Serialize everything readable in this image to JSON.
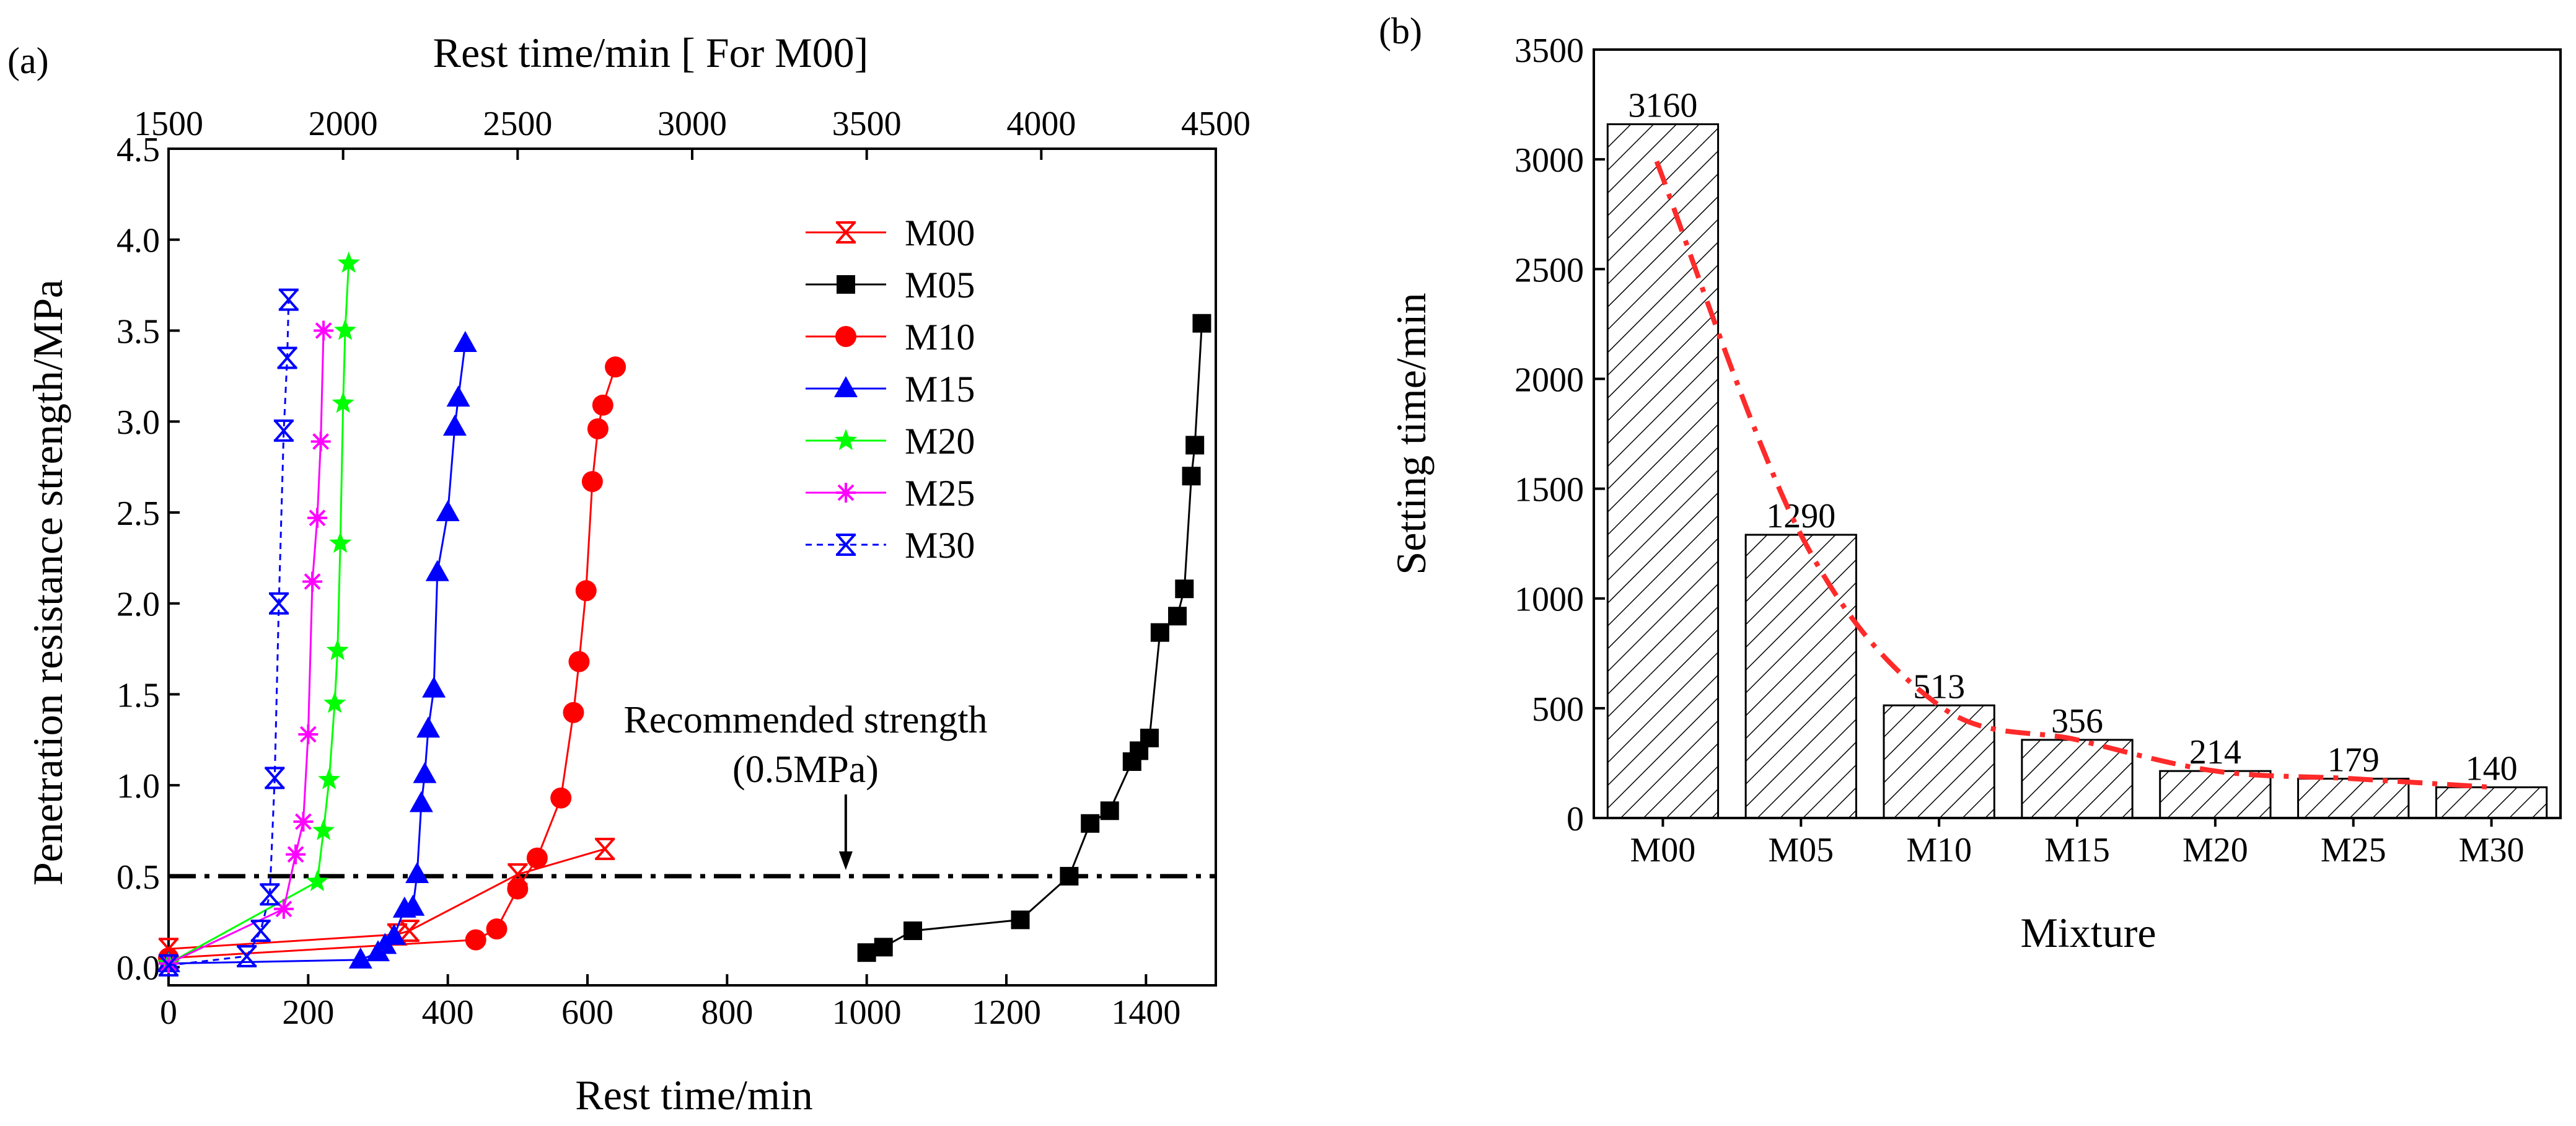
{
  "figure_labels": {
    "a": "(a)",
    "b": "(b)"
  },
  "chart_data": [
    {
      "type": "line",
      "panel": "(a)",
      "title": "",
      "xlabel": "Rest time/min",
      "xlabel_top": "Rest time/min [ For M00]",
      "ylabel": "Penetration resistance strength/MPa",
      "xlim": [
        0,
        1500
      ],
      "xlim_top": [
        1500,
        4500
      ],
      "ylim": [
        -0.1,
        4.5
      ],
      "xticks": [
        0,
        200,
        400,
        600,
        800,
        1000,
        1200,
        1400
      ],
      "xticks_top": [
        1500,
        2000,
        2500,
        3000,
        3500,
        4000,
        4500
      ],
      "yticks": [
        "0.0",
        "0.5",
        "1.0",
        "1.5",
        "2.0",
        "2.5",
        "3.0",
        "3.5",
        "4.0",
        "4.5"
      ],
      "legend_position": "top-center",
      "series": [
        {
          "name": "M00",
          "color": "#ff0000",
          "marker": "x-star",
          "dash": "solid",
          "axis": "top",
          "x": [
            1500,
            2155,
            2190,
            2500,
            2750
          ],
          "y": [
            0.1,
            0.18,
            0.2,
            0.51,
            0.65
          ]
        },
        {
          "name": "M05",
          "color": "#000000",
          "marker": "square",
          "dash": "solid",
          "axis": "bottom",
          "x": [
            1000,
            1024,
            1066,
            1220,
            1290,
            1320,
            1348,
            1380,
            1390,
            1405,
            1420,
            1445,
            1455,
            1465,
            1470,
            1480
          ],
          "y": [
            0.08,
            0.11,
            0.2,
            0.26,
            0.5,
            0.79,
            0.86,
            1.13,
            1.19,
            1.26,
            1.84,
            1.93,
            2.08,
            2.7,
            2.87,
            3.54
          ]
        },
        {
          "name": "M10",
          "color": "#ff0000",
          "marker": "circle",
          "dash": "solid",
          "axis": "bottom",
          "x": [
            0,
            440,
            470,
            500,
            528,
            562,
            580,
            588,
            598,
            607,
            615,
            622,
            640
          ],
          "y": [
            0.05,
            0.15,
            0.21,
            0.43,
            0.6,
            0.93,
            1.4,
            1.68,
            2.07,
            2.67,
            2.96,
            3.09,
            3.3
          ]
        },
        {
          "name": "M15",
          "color": "#0000ff",
          "marker": "triangle",
          "dash": "solid",
          "axis": "bottom",
          "x": [
            0,
            275,
            300,
            310,
            323,
            338,
            350,
            356,
            362,
            367,
            372,
            380,
            385,
            400,
            410,
            415,
            425
          ],
          "y": [
            0.02,
            0.04,
            0.08,
            0.12,
            0.17,
            0.32,
            0.33,
            0.51,
            0.9,
            1.06,
            1.31,
            1.53,
            2.17,
            2.5,
            2.97,
            3.13,
            3.43
          ]
        },
        {
          "name": "M20",
          "color": "#00ff00",
          "marker": "star",
          "dash": "solid",
          "axis": "bottom",
          "x": [
            0,
            213,
            222,
            230,
            238,
            242,
            246,
            250,
            253,
            258
          ],
          "y": [
            0.02,
            0.47,
            0.75,
            1.03,
            1.45,
            1.74,
            2.33,
            3.1,
            3.5,
            3.87
          ]
        },
        {
          "name": "M25",
          "color": "#ff00ff",
          "marker": "asterisk",
          "dash": "solid",
          "axis": "bottom",
          "x": [
            0,
            165,
            182,
            193,
            200,
            206,
            213,
            218,
            222
          ],
          "y": [
            0.02,
            0.32,
            0.62,
            0.8,
            1.28,
            2.12,
            2.47,
            2.89,
            3.5
          ]
        },
        {
          "name": "M30",
          "color": "#0000ff",
          "marker": "x-star",
          "dash": "dashed",
          "axis": "bottom",
          "x": [
            0,
            112,
            132,
            145,
            152,
            158,
            165,
            170,
            172
          ],
          "y": [
            0.01,
            0.06,
            0.2,
            0.4,
            1.04,
            2.0,
            2.95,
            3.35,
            3.67
          ]
        }
      ],
      "reference_line": {
        "y": 0.5,
        "style": "dash-dot"
      },
      "annotation": {
        "line1": "Recommended strength",
        "line2": "(0.5MPa)",
        "arrow_x": 970,
        "arrow_y": 0.5
      }
    },
    {
      "type": "bar",
      "panel": "(b)",
      "title": "",
      "xlabel": "Mixture",
      "ylabel": "Setting time/min",
      "categories": [
        "M00",
        "M05",
        "M10",
        "M15",
        "M20",
        "M25",
        "M30"
      ],
      "values": [
        3160,
        1290,
        513,
        356,
        214,
        179,
        140
      ],
      "data_labels": [
        "3160",
        "1290",
        "513",
        "356",
        "214",
        "179",
        "140"
      ],
      "ylim": [
        0,
        3500
      ],
      "yticks": [
        "0",
        "500",
        "1000",
        "1500",
        "2000",
        "2500",
        "3000",
        "3500"
      ],
      "bar_fill": "diagonal-hatch",
      "trend_line": {
        "style": "dash-dot",
        "color": "#ff2a2a",
        "type": "exponential decay"
      }
    }
  ]
}
